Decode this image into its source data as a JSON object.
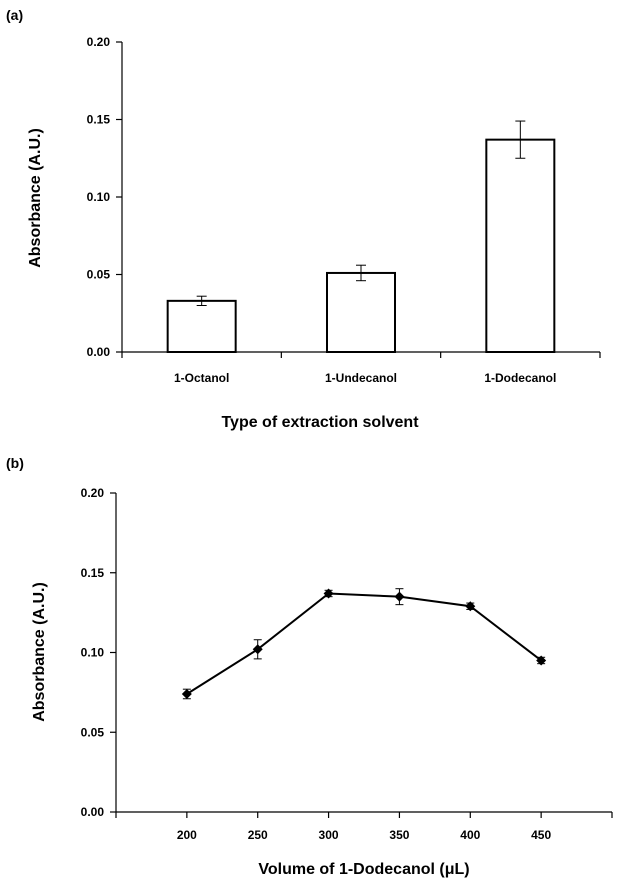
{
  "chart_data": [
    {
      "panel": "(a)",
      "type": "bar",
      "xlabel": "Type of extraction solvent",
      "ylabel": "Absorbance (A.U.)",
      "categories": [
        "1-Octanol",
        "1-Undecanol",
        "1-Dodecanol"
      ],
      "values": [
        0.033,
        0.051,
        0.137
      ],
      "errors": [
        0.003,
        0.005,
        0.012
      ],
      "ylim": [
        0,
        0.2
      ],
      "yticks": [
        "0.00",
        "0.05",
        "0.10",
        "0.15",
        "0.20"
      ],
      "grid": false,
      "colors": {
        "bar_fill": "#ffffff",
        "bar_stroke": "#000000"
      }
    },
    {
      "panel": "(b)",
      "type": "line",
      "xlabel": "Volume of 1-Dodecanol (μL)",
      "ylabel": "Absorbance (A.U.)",
      "x": [
        200,
        250,
        300,
        350,
        400,
        450
      ],
      "values": [
        0.074,
        0.102,
        0.137,
        0.135,
        0.129,
        0.095
      ],
      "errors": [
        0.003,
        0.006,
        0.002,
        0.005,
        0.002,
        0.002
      ],
      "xlim": [
        150,
        500
      ],
      "xticks": [
        "200",
        "250",
        "300",
        "350",
        "400",
        "450"
      ],
      "ylim": [
        0,
        0.2
      ],
      "yticks": [
        "0.00",
        "0.05",
        "0.10",
        "0.15",
        "0.20"
      ],
      "grid": false,
      "marker": "diamond",
      "colors": {
        "line": "#000000",
        "marker": "#000000"
      }
    }
  ]
}
